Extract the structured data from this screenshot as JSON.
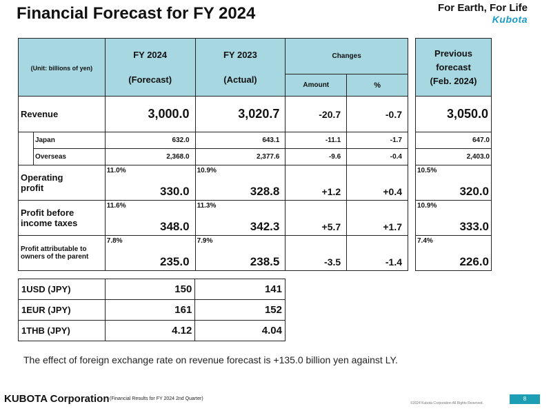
{
  "header": {
    "title": "Financial Forecast for FY 2024",
    "tagline": "For Earth, For Life",
    "brand_logo": "Kubota"
  },
  "table": {
    "unit_label": "(Unit: billions of yen)",
    "col_fy2024_line1": "FY 2024",
    "col_fy2024_line2": "(Forecast)",
    "col_fy2023_line1": "FY 2023",
    "col_fy2023_line2": "(Actual)",
    "col_changes": "Changes",
    "col_amount": "Amount",
    "col_pct": "%",
    "col_prev_line1": "Previous",
    "col_prev_line2": "forecast",
    "col_prev_line3": "(Feb. 2024)",
    "revenue": {
      "label": "Revenue",
      "fy2024": "3,000.0",
      "fy2023": "3,020.7",
      "amount": "-20.7",
      "pct": "-0.7",
      "prev": "3,050.0"
    },
    "japan": {
      "label": "Japan",
      "fy2024": "632.0",
      "fy2023": "643.1",
      "amount": "-11.1",
      "pct": "-1.7",
      "prev": "647.0"
    },
    "overseas": {
      "label": "Overseas",
      "fy2024": "2,368.0",
      "fy2023": "2,377.6",
      "amount": "-9.6",
      "pct": "-0.4",
      "prev": "2,403.0"
    },
    "operating_profit": {
      "label_line1": "Operating",
      "label_line2": "profit",
      "fy2024_margin": "11.0%",
      "fy2024": "330.0",
      "fy2023_margin": "10.9%",
      "fy2023": "328.8",
      "amount": "+1.2",
      "pct": "+0.4",
      "prev_margin": "10.5%",
      "prev": "320.0"
    },
    "profit_before_tax": {
      "label_line1": "Profit before",
      "label_line2": "income taxes",
      "fy2024_margin": "11.6%",
      "fy2024": "348.0",
      "fy2023_margin": "11.3%",
      "fy2023": "342.3",
      "amount": "+5.7",
      "pct": "+1.7",
      "prev_margin": "10.9%",
      "prev": "333.0"
    },
    "profit_owners": {
      "label_line1": "Profit attributable to",
      "label_line2": "owners of the parent",
      "fy2024_margin": "7.8%",
      "fy2024": "235.0",
      "fy2023_margin": "7.9%",
      "fy2023": "238.5",
      "amount": "-3.5",
      "pct": "-1.4",
      "prev_margin": "7.4%",
      "prev": "226.0"
    }
  },
  "fx": [
    {
      "label": "1USD (JPY)",
      "fy2024": "150",
      "fy2023": "141"
    },
    {
      "label": "1EUR (JPY)",
      "fy2024": "161",
      "fy2023": "152"
    },
    {
      "label": "1THB (JPY)",
      "fy2024": "4.12",
      "fy2023": "4.04"
    }
  ],
  "note": "The effect of foreign exchange rate on revenue forecast is +135.0 billion yen against LY.",
  "footer": {
    "brand": "KUBOTA Corporation",
    "subtitle": "(Financial Results for FY 2024 2nd Quarter)",
    "copyright": "©2024 Kubota Corporation All Rights Reserved.",
    "page_number": "8"
  },
  "colors": {
    "header_fill": "#a7d8e2",
    "page_box": "#1e9eb5",
    "logo": "#1a9ac6"
  }
}
